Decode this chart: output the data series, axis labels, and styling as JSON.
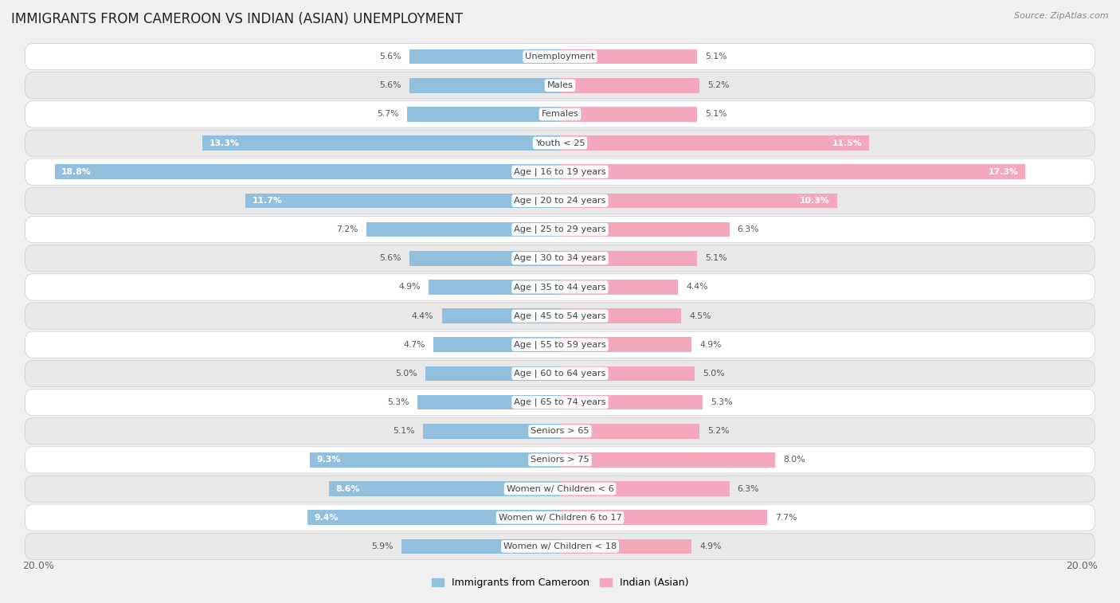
{
  "title": "IMMIGRANTS FROM CAMEROON VS INDIAN (ASIAN) UNEMPLOYMENT",
  "source": "Source: ZipAtlas.com",
  "categories": [
    "Unemployment",
    "Males",
    "Females",
    "Youth < 25",
    "Age | 16 to 19 years",
    "Age | 20 to 24 years",
    "Age | 25 to 29 years",
    "Age | 30 to 34 years",
    "Age | 35 to 44 years",
    "Age | 45 to 54 years",
    "Age | 55 to 59 years",
    "Age | 60 to 64 years",
    "Age | 65 to 74 years",
    "Seniors > 65",
    "Seniors > 75",
    "Women w/ Children < 6",
    "Women w/ Children 6 to 17",
    "Women w/ Children < 18"
  ],
  "cameroon_values": [
    5.6,
    5.6,
    5.7,
    13.3,
    18.8,
    11.7,
    7.2,
    5.6,
    4.9,
    4.4,
    4.7,
    5.0,
    5.3,
    5.1,
    9.3,
    8.6,
    9.4,
    5.9
  ],
  "indian_values": [
    5.1,
    5.2,
    5.1,
    11.5,
    17.3,
    10.3,
    6.3,
    5.1,
    4.4,
    4.5,
    4.9,
    5.0,
    5.3,
    5.2,
    8.0,
    6.3,
    7.7,
    4.9
  ],
  "cameroon_color": "#92bfde",
  "indian_color": "#f4a8bc",
  "cameroon_label": "Immigrants from Cameroon",
  "indian_label": "Indian (Asian)",
  "axis_max": 20.0,
  "axis_label_left": "20.0%",
  "axis_label_right": "20.0%",
  "bar_height": 0.52,
  "bg_color": "#f0f0f0",
  "row_even_color": "#ffffff",
  "row_odd_color": "#e8e8e8",
  "row_border_color": "#cccccc",
  "title_fontsize": 12,
  "label_fontsize": 8.2,
  "value_fontsize": 7.8,
  "inside_threshold_cam": 8.5,
  "inside_threshold_ind": 8.5
}
